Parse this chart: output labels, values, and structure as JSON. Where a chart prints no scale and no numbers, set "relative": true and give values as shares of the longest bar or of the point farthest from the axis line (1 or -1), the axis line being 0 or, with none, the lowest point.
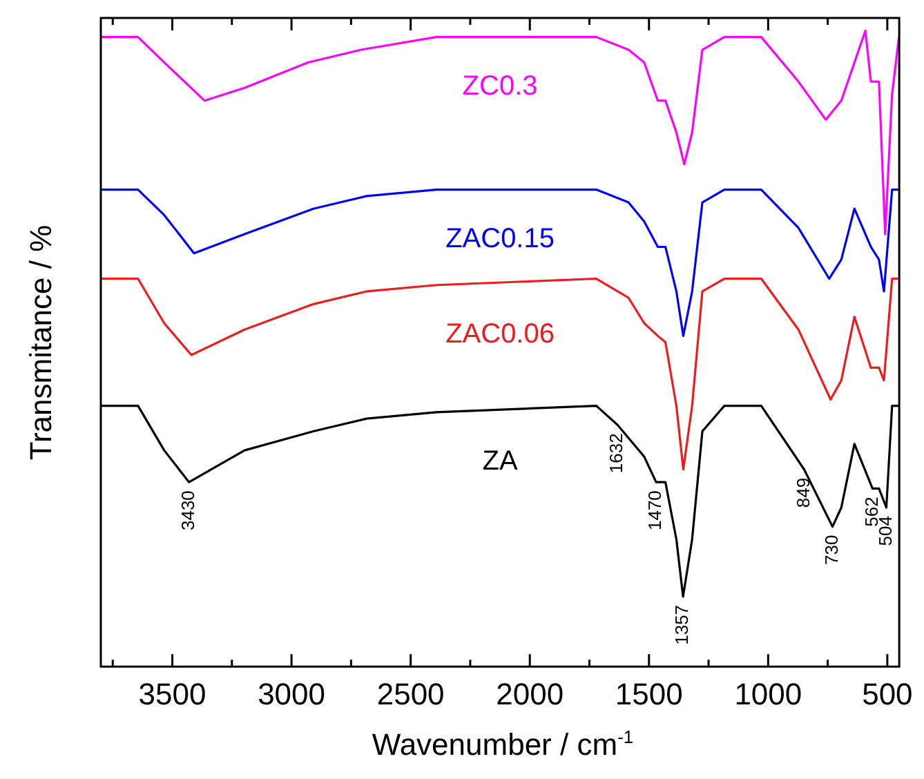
{
  "chart_data": {
    "type": "line",
    "relative": true,
    "xlabel": "Wavenumber / cm$^{-1}$",
    "ylabel": "Transmitance / %",
    "xlim": [
      3800,
      450
    ],
    "xticks": [
      {
        "value": 3750,
        "label": null
      },
      3500,
      {
        "value": 3250,
        "label": null
      },
      3000,
      {
        "value": 2750,
        "label": null
      },
      2500,
      {
        "value": 2250,
        "label": null
      },
      2000,
      {
        "value": 1750,
        "label": null
      },
      1500,
      {
        "value": 1250,
        "label": null
      },
      1000,
      {
        "value": 750,
        "label": null
      },
      500
    ],
    "legend": false,
    "marker": "none",
    "line_style": "solid",
    "series": [
      {
        "name": "ZC0.3",
        "color": "#ff00ff",
        "x": [
          3800,
          3644,
          3534,
          3365,
          3197,
          2931,
          2707,
          2392,
          1721,
          1586,
          1520,
          1463,
          1431,
          1385,
          1352,
          1319,
          1276,
          1184,
          1029,
          873,
          758,
          693,
          592,
          569,
          535,
          509,
          480,
          451
        ],
        "values": [
          0.99,
          0.99,
          0.95,
          0.89,
          0.91,
          0.95,
          0.97,
          0.99,
          0.99,
          0.97,
          0.95,
          0.89,
          0.89,
          0.84,
          0.79,
          0.84,
          0.97,
          0.99,
          0.99,
          0.92,
          0.86,
          0.89,
          1,
          0.92,
          0.92,
          0.68,
          0.9,
          0.99
        ]
      },
      {
        "name": "ZAC0.15",
        "color": "#0000ff",
        "x": [
          3800,
          3644,
          3534,
          3409,
          3197,
          2908,
          2684,
          2392,
          1721,
          1586,
          1520,
          1463,
          1431,
          1385,
          1356,
          1319,
          1276,
          1184,
          1029,
          873,
          744,
          693,
          638,
          569,
          535,
          514,
          480,
          451
        ],
        "values": [
          0.75,
          0.75,
          0.71,
          0.65,
          0.68,
          0.72,
          0.74,
          0.75,
          0.75,
          0.73,
          0.7,
          0.66,
          0.66,
          0.59,
          0.52,
          0.59,
          0.73,
          0.75,
          0.75,
          0.69,
          0.61,
          0.64,
          0.72,
          0.66,
          0.64,
          0.59,
          0.75,
          0.75
        ]
      },
      {
        "name": "ZAC0.06",
        "color": "#ee1c1c",
        "x": [
          3800,
          3644,
          3534,
          3420,
          3197,
          2908,
          2684,
          2392,
          1721,
          1586,
          1520,
          1463,
          1431,
          1385,
          1356,
          1319,
          1276,
          1184,
          1029,
          873,
          738,
          693,
          638,
          569,
          535,
          514,
          480,
          451
        ],
        "values": [
          0.61,
          0.61,
          0.54,
          0.49,
          0.53,
          0.57,
          0.59,
          0.6,
          0.61,
          0.58,
          0.54,
          0.52,
          0.51,
          0.41,
          0.31,
          0.41,
          0.59,
          0.61,
          0.61,
          0.53,
          0.42,
          0.45,
          0.55,
          0.47,
          0.47,
          0.45,
          0.61,
          0.61
        ]
      },
      {
        "name": "ZA",
        "color": "#000000",
        "x": [
          3800,
          3644,
          3534,
          3430,
          3197,
          2908,
          2684,
          2392,
          1721,
          1632,
          1520,
          1470,
          1431,
          1385,
          1357,
          1319,
          1276,
          1184,
          1029,
          849,
          730,
          693,
          638,
          562,
          535,
          504,
          480,
          451
        ],
        "values": [
          0.41,
          0.41,
          0.34,
          0.29,
          0.34,
          0.37,
          0.39,
          0.4,
          0.41,
          0.38,
          0.33,
          0.29,
          0.29,
          0.2,
          0.11,
          0.2,
          0.37,
          0.41,
          0.41,
          0.31,
          0.22,
          0.25,
          0.35,
          0.28,
          0.28,
          0.25,
          0.41,
          0.41
        ]
      }
    ],
    "annotations": [
      {
        "text": "3430",
        "x": 3430,
        "y": 0.29
      },
      {
        "text": "1632",
        "x": 1632,
        "y": 0.38
      },
      {
        "text": "1470",
        "x": 1470,
        "y": 0.29
      },
      {
        "text": "1357",
        "x": 1357,
        "y": 0.11
      },
      {
        "text": "849",
        "x": 849,
        "y": 0.31
      },
      {
        "text": "730",
        "x": 730,
        "y": 0.22
      },
      {
        "text": "562",
        "x": 562,
        "y": 0.28
      },
      {
        "text": "504",
        "x": 504,
        "y": 0.25
      }
    ]
  }
}
